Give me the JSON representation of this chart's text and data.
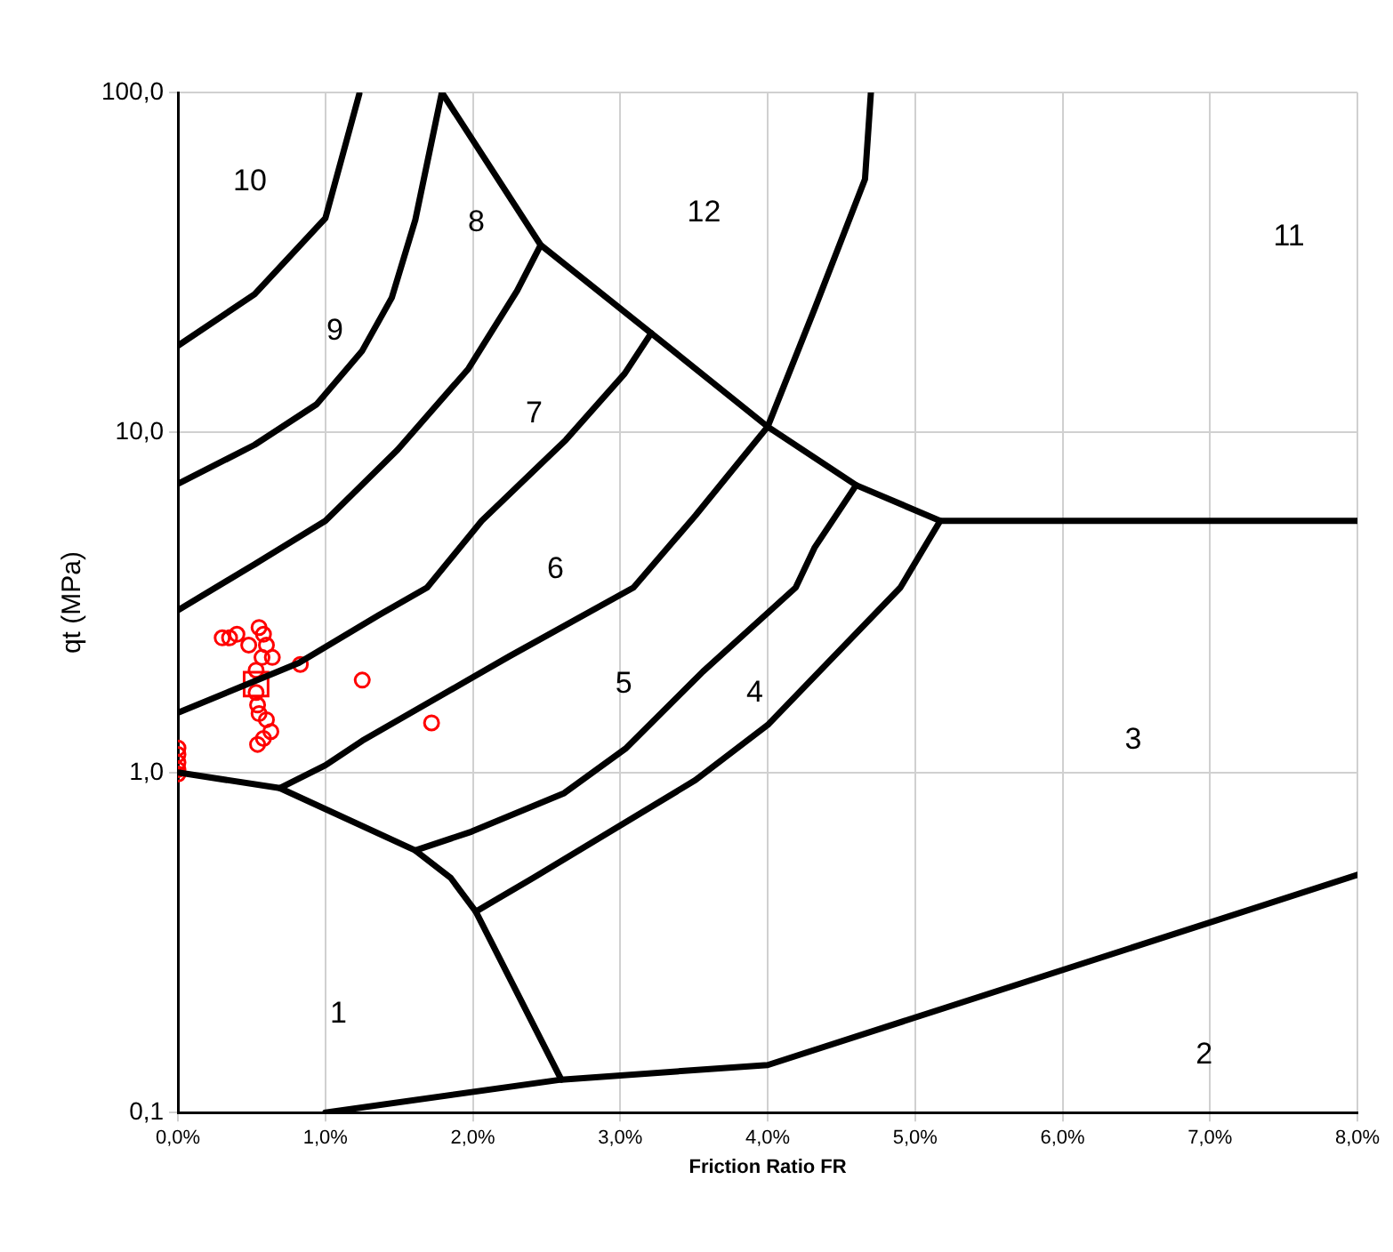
{
  "chart_data": {
    "type": "scatter",
    "xlabel": "Friction Ratio FR",
    "ylabel": "qt (MPa)",
    "xlim": [
      0,
      8
    ],
    "xticks": [
      {
        "value": 0,
        "label": "0,0%"
      },
      {
        "value": 1,
        "label": "1,0%"
      },
      {
        "value": 2,
        "label": "2,0%"
      },
      {
        "value": 3,
        "label": "3,0%"
      },
      {
        "value": 4,
        "label": "4,0%"
      },
      {
        "value": 5,
        "label": "5,0%"
      },
      {
        "value": 6,
        "label": "6,0%"
      },
      {
        "value": 7,
        "label": "7,0%"
      },
      {
        "value": 8,
        "label": "8,0%"
      }
    ],
    "ylim": [
      0.1,
      100
    ],
    "yticks": [
      {
        "value": 0.1,
        "label": "0,1"
      },
      {
        "value": 1,
        "label": "1,0"
      },
      {
        "value": 10,
        "label": "10,0"
      },
      {
        "value": 100,
        "label": "100,0"
      }
    ],
    "log": "y",
    "grid": true,
    "legend": false,
    "series": [
      {
        "type": "line",
        "color": "#000000",
        "x": [
          0,
          0.52,
          1.0,
          1.23
        ],
        "values": [
          18,
          25.5,
          42.7,
          99
        ]
      },
      {
        "type": "line",
        "color": "#000000",
        "x": [
          0,
          0.52,
          0.94,
          1.25,
          1.45,
          1.61,
          1.79
        ],
        "values": [
          7.06,
          9.2,
          12.1,
          17.4,
          24.9,
          42.2,
          100
        ]
      },
      {
        "type": "line",
        "color": "#000000",
        "x": [
          0,
          0.52,
          1.0,
          1.49,
          1.97,
          2.3,
          2.46
        ],
        "values": [
          3.0,
          4.1,
          5.5,
          8.9,
          15.4,
          26.1,
          35.6
        ]
      },
      {
        "type": "line",
        "color": "#000000",
        "x": [
          0,
          0.82,
          1.36,
          1.69,
          2.06,
          2.63,
          3.03,
          3.21
        ],
        "values": [
          1.5,
          2.1,
          2.9,
          3.5,
          5.5,
          9.5,
          14.9,
          19.6
        ]
      },
      {
        "type": "line",
        "color": "#000000",
        "x": [
          0.69,
          1.0,
          1.25,
          2.25,
          3.09,
          3.51,
          4.0,
          4.32,
          4.66,
          4.7
        ],
        "values": [
          0.9,
          1.05,
          1.24,
          2.2,
          3.5,
          5.7,
          10.4,
          23.2,
          55.6,
          100
        ]
      },
      {
        "type": "line",
        "color": "#000000",
        "x": [
          1.61,
          1.99,
          2.62,
          3.04,
          3.56,
          4.19,
          4.32,
          4.6
        ],
        "values": [
          0.59,
          0.67,
          0.87,
          1.18,
          1.98,
          3.5,
          4.6,
          7.0
        ]
      },
      {
        "type": "line",
        "color": "#000000",
        "x": [
          2.02,
          2.41,
          3.51,
          4.0,
          4.9,
          5.05,
          5.17
        ],
        "values": [
          0.39,
          0.49,
          0.95,
          1.38,
          3.5,
          4.5,
          5.5
        ]
      },
      {
        "type": "line",
        "color": "#000000",
        "x": [
          1.79,
          2.46,
          3.21,
          4.0,
          4.6,
          5.17,
          8.0
        ],
        "values": [
          100,
          35.6,
          19.6,
          10.4,
          7.0,
          5.5,
          5.5
        ]
      },
      {
        "type": "line",
        "color": "#000000",
        "x": [
          0,
          0.69,
          1.61,
          1.85,
          2.02,
          2.6
        ],
        "values": [
          1.0,
          0.9,
          0.59,
          0.49,
          0.39,
          0.125
        ]
      },
      {
        "type": "line",
        "color": "#000000",
        "x": [
          1.0,
          2.6,
          4.0,
          8.0
        ],
        "values": [
          0.1,
          0.125,
          0.138,
          0.5
        ]
      },
      {
        "color": "#ff0000",
        "marker": "circle",
        "x": [
          0,
          0,
          0,
          0,
          0,
          0.3,
          0.35,
          0.4,
          0.55,
          0.58,
          0.48,
          0.6,
          0.57,
          0.64,
          0.83,
          1.25,
          1.72,
          0.53,
          0.53,
          0.54,
          0.55,
          0.6,
          0.63,
          0.58,
          0.54
        ],
        "values": [
          1.18,
          1.13,
          1.07,
          1.02,
          0.99,
          2.49,
          2.49,
          2.55,
          2.67,
          2.55,
          2.37,
          2.37,
          2.18,
          2.18,
          2.08,
          1.87,
          1.4,
          2.0,
          1.72,
          1.58,
          1.49,
          1.43,
          1.32,
          1.26,
          1.21
        ]
      },
      {
        "color": "#ff0000",
        "marker": "square",
        "x": [
          0.53
        ],
        "values": [
          1.82
        ]
      }
    ],
    "annotations": [
      "10",
      "8",
      "12",
      "11",
      "9",
      "7",
      "6",
      "5",
      "4",
      "3",
      "1",
      "2"
    ]
  }
}
